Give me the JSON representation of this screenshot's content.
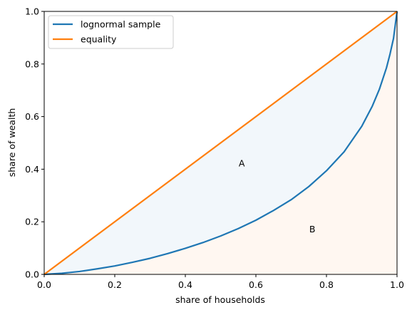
{
  "chart_data": {
    "type": "line",
    "xlabel": "share of households",
    "ylabel": "share of wealth",
    "xlim": [
      0,
      1
    ],
    "ylim": [
      0,
      1
    ],
    "x_ticks": [
      "0.0",
      "0.2",
      "0.4",
      "0.6",
      "0.8",
      "1.0"
    ],
    "y_ticks": [
      "0.0",
      "0.2",
      "0.4",
      "0.6",
      "0.8",
      "1.0"
    ],
    "grid": false,
    "legend_position": "top-left",
    "series": [
      {
        "name": "lognormal sample",
        "color": "#1f77b4",
        "x": [
          0.0,
          0.05,
          0.1,
          0.15,
          0.2,
          0.25,
          0.3,
          0.35,
          0.4,
          0.45,
          0.5,
          0.55,
          0.6,
          0.65,
          0.7,
          0.75,
          0.8,
          0.85,
          0.9,
          0.93,
          0.95,
          0.97,
          0.98,
          0.99,
          1.0
        ],
        "y": [
          0.0,
          0.004,
          0.011,
          0.021,
          0.032,
          0.046,
          0.061,
          0.079,
          0.099,
          0.121,
          0.146,
          0.174,
          0.206,
          0.243,
          0.284,
          0.334,
          0.394,
          0.466,
          0.563,
          0.64,
          0.704,
          0.785,
          0.837,
          0.897,
          1.0
        ]
      },
      {
        "name": "equality",
        "color": "#ff7f0e",
        "x": [
          0.0,
          1.0
        ],
        "y": [
          0.0,
          1.0
        ]
      }
    ],
    "regions": [
      {
        "label": "A",
        "between": "equality and lognormal sample",
        "color": "#1f77b4",
        "label_x": 0.56,
        "label_y": 0.41
      },
      {
        "label": "B",
        "between": "lognormal sample and x-axis",
        "color": "#ff7f0e",
        "label_x": 0.76,
        "label_y": 0.16
      }
    ]
  }
}
